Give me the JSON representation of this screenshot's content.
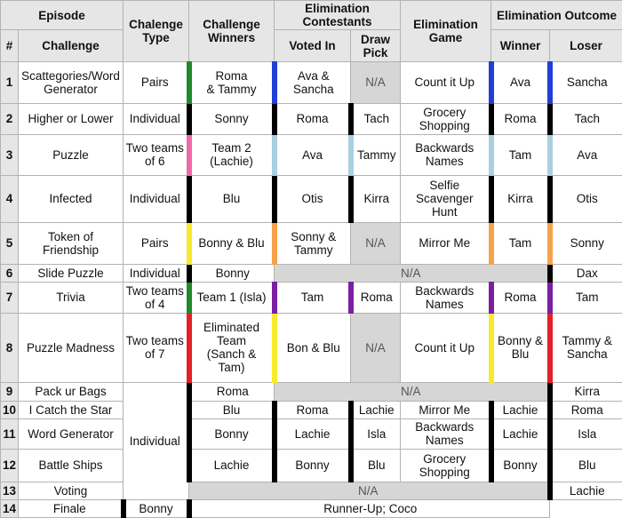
{
  "headers": {
    "episode": "Episode",
    "num": "#",
    "challenge": "Challenge",
    "challenge_type": "Chalenge Type",
    "challenge_winners": "Challenge Winners",
    "elimination_contestants": "Elimination Contestants",
    "voted_in": "Voted In",
    "draw_pick": "Draw Pick",
    "elimination_game": "Elimination Game",
    "elimination_outcome": "Elimination Outcome",
    "winner": "Winner",
    "loser": "Loser"
  },
  "rows": [
    {
      "num": "1",
      "challenge": "Scattegories/Word\nGenerator",
      "type": "Pairs",
      "winners": "Roma\n& Tammy",
      "voted_in": "Ava &\nSancha",
      "draw_pick": "N/A",
      "game": "Count it Up",
      "winner": "Ava",
      "loser": "Sancha"
    },
    {
      "num": "2",
      "challenge": "Higher or Lower",
      "type": "Individual",
      "winners": "Sonny",
      "voted_in": "Roma",
      "draw_pick": "Tach",
      "game": "Grocery\nShopping",
      "winner": "Roma",
      "loser": "Tach"
    },
    {
      "num": "3",
      "challenge": "Puzzle",
      "type": "Two teams\nof 6",
      "winners": "Team 2\n(Lachie)",
      "voted_in": "Ava",
      "draw_pick": "Tammy",
      "game": "Backwards\nNames",
      "winner": "Tam",
      "loser": "Ava"
    },
    {
      "num": "4",
      "challenge": "Infected",
      "type": "Individual",
      "winners": "Blu",
      "voted_in": "Otis",
      "draw_pick": "Kirra",
      "game": "Selfie\nScavenger\nHunt",
      "winner": "Kirra",
      "loser": "Otis"
    },
    {
      "num": "5",
      "challenge": "Token of\nFriendship",
      "type": "Pairs",
      "winners": "Bonny & Blu",
      "voted_in": "Sonny &\nTammy",
      "draw_pick": "N/A",
      "game": "Mirror Me",
      "winner": "Tam",
      "loser": "Sonny"
    },
    {
      "num": "6",
      "challenge": "Slide Puzzle",
      "type": "Individual",
      "winners": "Bonny",
      "span_na": "N/A",
      "loser": "Dax"
    },
    {
      "num": "7",
      "challenge": "Trivia",
      "type": "Two teams\nof 4",
      "winners": "Team 1 (Isla)",
      "voted_in": "Tam",
      "draw_pick": "Roma",
      "game": "Backwards\nNames",
      "winner": "Roma",
      "loser": "Tam"
    },
    {
      "num": "8",
      "challenge": "Puzzle Madness",
      "type": "Two teams\nof 7",
      "winners": "Eliminated\nTeam\n(Sanch &\nTam)",
      "voted_in": "Bon & Blu",
      "draw_pick": "N/A",
      "game": "Count it Up",
      "winner": "Bonny &\nBlu",
      "loser": "Tammy &\nSancha"
    },
    {
      "num": "9",
      "challenge": "Pack ur Bags",
      "winners": "Roma",
      "span_na": "N/A",
      "loser": "Kirra"
    },
    {
      "num": "10",
      "challenge": "I Catch the Star",
      "winners": "Blu",
      "voted_in": "Roma",
      "draw_pick": "Lachie",
      "game": "Mirror Me",
      "winner": "Lachie",
      "loser": "Roma"
    },
    {
      "num": "11",
      "challenge": "Word Generator",
      "winners": "Bonny",
      "voted_in": "Lachie",
      "draw_pick": "Isla",
      "game": "Backwards\nNames",
      "winner": "Lachie",
      "loser": "Isla"
    },
    {
      "num": "12",
      "challenge": "Battle Ships",
      "winners": "Lachie",
      "voted_in": "Bonny",
      "draw_pick": "Blu",
      "game": "Grocery\nShopping",
      "winner": "Bonny",
      "loser": "Blu"
    },
    {
      "num": "13",
      "challenge": "Voting",
      "span_na": "N/A",
      "loser": "Lachie"
    },
    {
      "num": "14",
      "challenge": "Finale",
      "winners": "Bonny",
      "finale_note": "Runner-Up; Coco"
    }
  ],
  "individual_label": "Individual",
  "colors": {
    "green": "#1f8a2a",
    "blue": "#1f3fd6",
    "black": "#000000",
    "lightblue": "#a9cfe0",
    "pink": "#ee6aa7",
    "yellow": "#f7ea2a",
    "orange": "#f6a24a",
    "purple": "#7b1fa2",
    "red": "#e3202a"
  }
}
